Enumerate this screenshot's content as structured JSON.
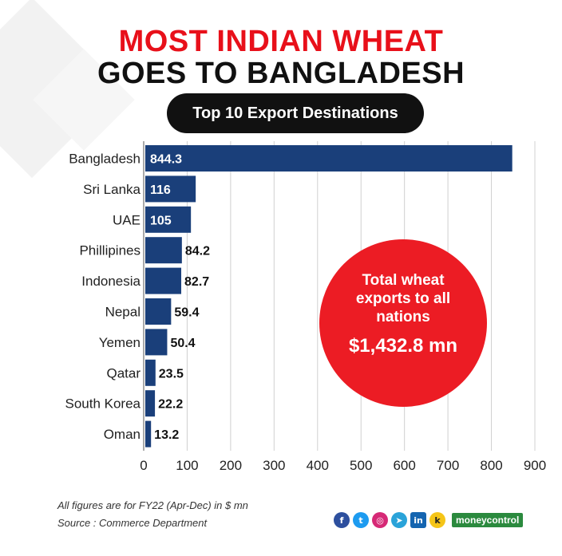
{
  "title_line1": "MOST INDIAN WHEAT",
  "title_line2": "GOES TO BANGLADESH",
  "subtitle": "Top 10 Export Destinations",
  "callout": {
    "text": "Total wheat exports to all nations",
    "value": "$1,432.8 mn"
  },
  "footnote": "All figures are for FY22 (Apr-Dec) in $ mn",
  "source": "Source : Commerce Department",
  "brand": "moneycontrol",
  "social_icons": [
    "facebook-icon",
    "twitter-icon",
    "instagram-icon",
    "telegram-icon",
    "linkedin-icon",
    "koo-icon"
  ],
  "colors": {
    "bar": "#1a3f7a",
    "title_red": "#e8101a",
    "callout": "#ec1c24"
  },
  "chart_data": {
    "type": "bar",
    "orientation": "horizontal",
    "categories": [
      "Bangladesh",
      "Sri Lanka",
      "UAE",
      "Phillipines",
      "Indonesia",
      "Nepal",
      "Yemen",
      "Qatar",
      "South Korea",
      "Oman"
    ],
    "values": [
      844.3,
      116,
      105,
      84.2,
      82.7,
      59.4,
      50.4,
      23.5,
      22.2,
      13.2
    ],
    "value_labels": [
      "844.3",
      "116",
      "105",
      "84.2",
      "82.7",
      "59.4",
      "50.4",
      "23.5",
      "22.2",
      "13.2"
    ],
    "xlim": [
      0,
      900
    ],
    "xticks": [
      0,
      100,
      200,
      300,
      400,
      500,
      600,
      700,
      800,
      900
    ],
    "grid": true
  }
}
